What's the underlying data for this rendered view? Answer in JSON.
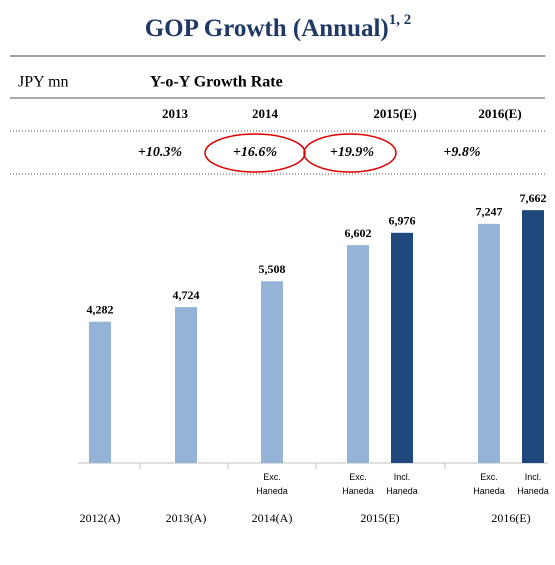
{
  "header": {
    "title": "GOP Growth (Annual)",
    "title_note": "1, 2",
    "unit": "JPY mn",
    "growth_heading": "Y-o-Y Growth Rate",
    "growth_years": [
      "2013",
      "2014",
      "2015(E)",
      "2016(E)"
    ],
    "growth_rates": [
      "+10.3%",
      "+16.6%",
      "+19.9%",
      "+9.8%"
    ]
  },
  "chart_data": {
    "type": "bar",
    "categories": [
      "2012(A)",
      "2013(A)",
      "2014(A)",
      "2015(E)",
      "2016(E)"
    ],
    "ylim": [
      0,
      8000
    ],
    "series": [
      {
        "name": "Exc. Haneda",
        "color": "#95b3d7",
        "values": [
          4282,
          4724,
          5508,
          6602,
          7247
        ],
        "value_labels": [
          "4,282",
          "4,724",
          "5,508",
          "6,602",
          "7,247"
        ]
      },
      {
        "name": "Incl. Haneda",
        "color": "#1f497d",
        "values": [
          null,
          null,
          null,
          6976,
          7662
        ],
        "value_labels": [
          null,
          null,
          null,
          "6,976",
          "7,662"
        ]
      }
    ]
  }
}
